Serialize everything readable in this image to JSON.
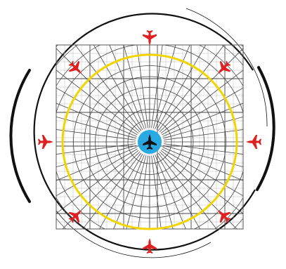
{
  "colors": {
    "background": "#ffffff",
    "outer_ring": "#111111",
    "grid_line": "#444444",
    "grid_fine": "#bdbdbd",
    "highlight_ring": "#f2d500",
    "center_badge": "#29a9e1",
    "center_plane": "#111111",
    "perimeter_plane": "#e02020"
  },
  "diagram": {
    "center_icon": "fighter-jet-icon",
    "perimeter_icon": "fighter-jet-icon",
    "perimeter_plane_count": 8,
    "grid_rings": 9,
    "grid_spokes": 48,
    "highlight_ring_index": 8
  }
}
